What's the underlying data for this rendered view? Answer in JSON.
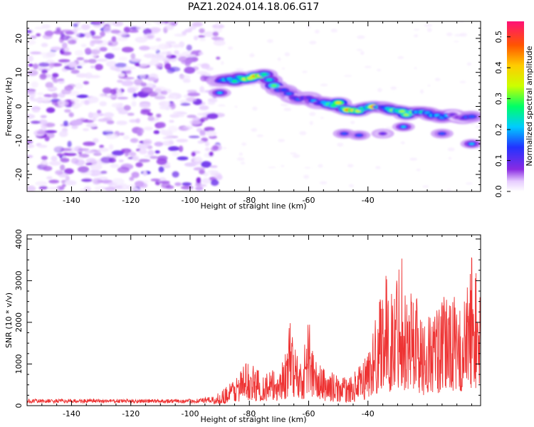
{
  "title": "PAZ1.2024.014.18.06.G17",
  "colors": {
    "snr_line": "#ee3333",
    "axis": "#000000",
    "colormap": [
      "#ffffff",
      "#e6ccff",
      "#8a2be2",
      "#2233ff",
      "#00ccff",
      "#00ff66",
      "#ccff00",
      "#ffcc00",
      "#ff5500",
      "#ff1177"
    ]
  },
  "chart_data": [
    {
      "type": "heatmap",
      "title": "PAZ1.2024.014.18.06.G17",
      "xlabel": "Height of straight line (km)",
      "ylabel": "Frequency (Hz)",
      "xlim": [
        -155,
        -2
      ],
      "ylim": [
        -25,
        25
      ],
      "xticks": [
        -140,
        -120,
        -100,
        -80,
        -60,
        -40
      ],
      "yticks": [
        -20,
        -10,
        0,
        10,
        20
      ],
      "colorbar": {
        "label": "Normalized spectral amplitude",
        "range": [
          0,
          0.55
        ],
        "ticks": [
          "0.0",
          "0.1",
          "0.2",
          "0.3",
          "0.4",
          "0.5"
        ]
      },
      "noise_region": {
        "x_range": [
          -155,
          -90
        ],
        "freq_range": [
          -25,
          25
        ],
        "amplitude": [
          0.02,
          0.15
        ]
      },
      "ridge_points": [
        {
          "x": -90,
          "freq": 7,
          "amp": 0.2
        },
        {
          "x": -85,
          "freq": 8,
          "amp": 0.45
        },
        {
          "x": -78,
          "freq": 8.5,
          "amp": 0.5
        },
        {
          "x": -75,
          "freq": 9,
          "amp": 0.35
        },
        {
          "x": -70,
          "freq": 5,
          "amp": 0.3
        },
        {
          "x": -65,
          "freq": 3,
          "amp": 0.25
        },
        {
          "x": -60,
          "freq": 2,
          "amp": 0.25
        },
        {
          "x": -55,
          "freq": 1,
          "amp": 0.3
        },
        {
          "x": -50,
          "freq": 0.5,
          "amp": 0.45
        },
        {
          "x": -45,
          "freq": -1.5,
          "amp": 0.5
        },
        {
          "x": -40,
          "freq": 0,
          "amp": 0.3
        },
        {
          "x": -38,
          "freq": 0,
          "amp": 0.5
        },
        {
          "x": -35,
          "freq": 0,
          "amp": 0.3
        },
        {
          "x": -30,
          "freq": -1.5,
          "amp": 0.45
        },
        {
          "x": -27,
          "freq": -2,
          "amp": 0.5
        },
        {
          "x": -20,
          "freq": -2,
          "amp": 0.3
        },
        {
          "x": -15,
          "freq": -3,
          "amp": 0.25
        },
        {
          "x": -8,
          "freq": -3,
          "amp": 0.2
        },
        {
          "x": -5,
          "freq": -3,
          "amp": 0.2
        }
      ],
      "secondary_points": [
        {
          "x": -90,
          "freq": 4,
          "amp": 0.25
        },
        {
          "x": -48,
          "freq": -8,
          "amp": 0.2
        },
        {
          "x": -43,
          "freq": -8.5,
          "amp": 0.2
        },
        {
          "x": -35,
          "freq": -8,
          "amp": 0.15
        },
        {
          "x": -28,
          "freq": -6,
          "amp": 0.25
        },
        {
          "x": -15,
          "freq": -8,
          "amp": 0.2
        },
        {
          "x": -5,
          "freq": -11,
          "amp": 0.25
        }
      ]
    },
    {
      "type": "line",
      "xlabel": "Height of straight line (km)",
      "ylabel": "SNR (10 * v/v)",
      "xlim": [
        -155,
        -2
      ],
      "ylim": [
        0,
        4100
      ],
      "xticks": [
        -140,
        -120,
        -100,
        -80,
        -60,
        -40
      ],
      "yticks": [
        0,
        1000,
        2000,
        3000,
        4000
      ],
      "envelope": [
        {
          "x": -155,
          "y": 150
        },
        {
          "x": -120,
          "y": 150
        },
        {
          "x": -100,
          "y": 150
        },
        {
          "x": -92,
          "y": 200
        },
        {
          "x": -88,
          "y": 450
        },
        {
          "x": -84,
          "y": 750
        },
        {
          "x": -81,
          "y": 1050
        },
        {
          "x": -78,
          "y": 900
        },
        {
          "x": -74,
          "y": 800
        },
        {
          "x": -71,
          "y": 850
        },
        {
          "x": -68,
          "y": 1200
        },
        {
          "x": -66,
          "y": 2050
        },
        {
          "x": -64,
          "y": 1300
        },
        {
          "x": -62,
          "y": 1100
        },
        {
          "x": -60,
          "y": 2250
        },
        {
          "x": -58,
          "y": 1100
        },
        {
          "x": -55,
          "y": 900
        },
        {
          "x": -50,
          "y": 700
        },
        {
          "x": -46,
          "y": 650
        },
        {
          "x": -42,
          "y": 1000
        },
        {
          "x": -40,
          "y": 1400
        },
        {
          "x": -37,
          "y": 2200
        },
        {
          "x": -35,
          "y": 3550
        },
        {
          "x": -33,
          "y": 2600
        },
        {
          "x": -31,
          "y": 2800
        },
        {
          "x": -29,
          "y": 4050
        },
        {
          "x": -27,
          "y": 2600
        },
        {
          "x": -24,
          "y": 3050
        },
        {
          "x": -22,
          "y": 2000
        },
        {
          "x": -18,
          "y": 2300
        },
        {
          "x": -15,
          "y": 2400
        },
        {
          "x": -12,
          "y": 3000
        },
        {
          "x": -10,
          "y": 2200
        },
        {
          "x": -7,
          "y": 2600
        },
        {
          "x": -5,
          "y": 3650
        },
        {
          "x": -3,
          "y": 3000
        }
      ]
    }
  ]
}
